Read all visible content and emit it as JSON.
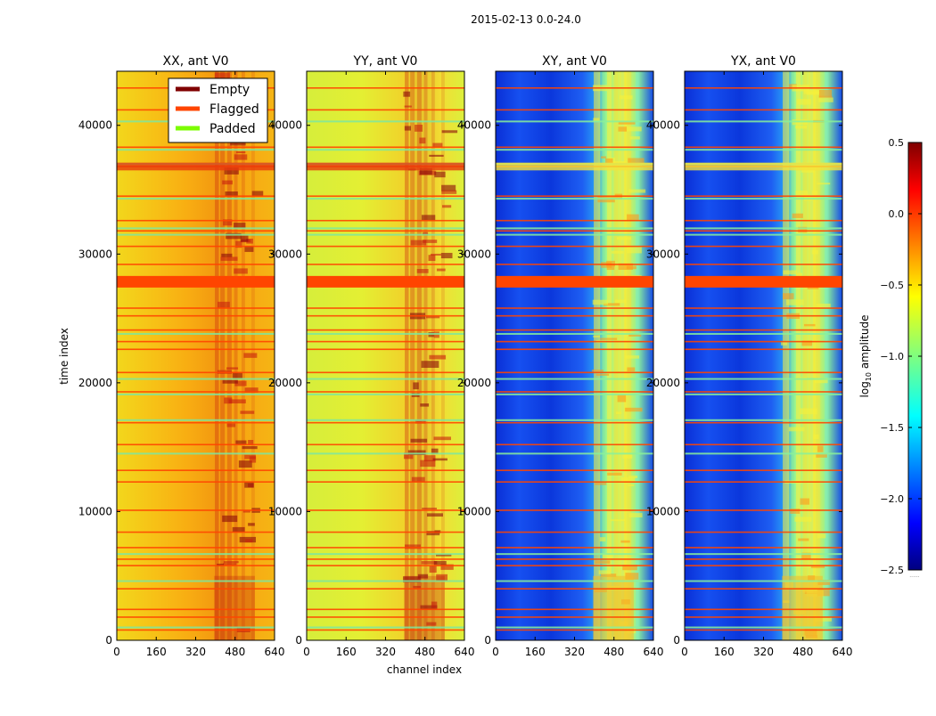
{
  "chart_data": {
    "type": "heatmap",
    "title": "2015-02-13 0.0-24.0",
    "xlabel": "channel index",
    "ylabel": "time index",
    "xlim": [
      0,
      640
    ],
    "ylim": [
      0,
      44200
    ],
    "x_ticks": [
      0,
      160,
      320,
      480,
      640
    ],
    "y_ticks": [
      0,
      10000,
      20000,
      30000,
      40000
    ],
    "panels": [
      {
        "title": "XX, ant V0",
        "style": "xx"
      },
      {
        "title": "YY, ant V0",
        "style": "yy"
      },
      {
        "title": "XY, ant V0",
        "style": "xy"
      },
      {
        "title": "YX, ant V0",
        "style": "yx"
      }
    ],
    "legend": [
      {
        "label": "Empty",
        "color": "#800000"
      },
      {
        "label": "Flagged",
        "color": "#ff4500"
      },
      {
        "label": "Padded",
        "color": "#7cfc00"
      }
    ],
    "legend_position": "upper-right of first panel",
    "colorbar": {
      "label_main": "log",
      "label_sub": "10",
      "label_rest": " amplitude",
      "range": [
        -2.5,
        0.5
      ],
      "ticks": [
        "0.5",
        "0.0",
        "−0.5",
        "−1.0",
        "−1.5",
        "−2.0",
        "−2.5"
      ],
      "tick_values": [
        0.5,
        0.0,
        -0.5,
        -1.0,
        -1.5,
        -2.0,
        -2.5
      ],
      "extra_label": "......"
    },
    "flagged_band_range": [
      27400,
      28300
    ],
    "flagged_rows_approx": [
      800,
      1800,
      2400,
      4000,
      5800,
      6300,
      7200,
      8400,
      10100,
      12300,
      13200,
      15200,
      16900,
      19300,
      20800,
      22600,
      23200,
      24100,
      25200,
      25800,
      29200,
      30600,
      31800,
      32600,
      34500,
      36800,
      38300,
      41200,
      42900
    ],
    "padded_rows_approx": [
      1000,
      4600,
      6700,
      14500,
      17100,
      19100,
      20300,
      23800,
      31500,
      32000,
      34300,
      37000,
      38100,
      40300
    ]
  }
}
